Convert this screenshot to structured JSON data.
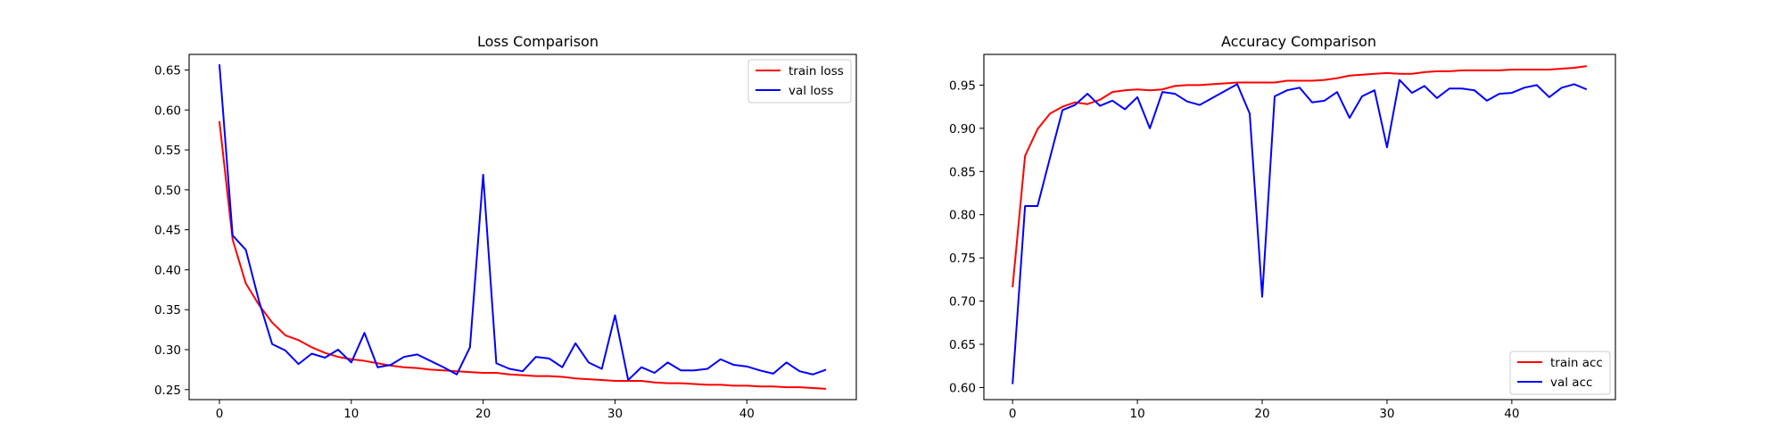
{
  "chart_data": [
    {
      "type": "line",
      "title": "Loss Comparison",
      "xlabel": "",
      "ylabel": "",
      "xlim": [
        -2.3,
        48.3
      ],
      "ylim": [
        0.2375,
        0.6695
      ],
      "xticks": [
        0,
        10,
        20,
        30,
        40
      ],
      "yticks": [
        0.25,
        0.3,
        0.35,
        0.4,
        0.45,
        0.5,
        0.55,
        0.6,
        0.65
      ],
      "tick_labels_x": [
        "0",
        "10",
        "20",
        "30",
        "40"
      ],
      "tick_labels_y": [
        "0.25",
        "0.30",
        "0.35",
        "0.40",
        "0.45",
        "0.50",
        "0.55",
        "0.60",
        "0.65"
      ],
      "legend": "top-right",
      "grid": false,
      "series": [
        {
          "name": "train loss",
          "color": "#ff0000",
          "values": [
            0.586,
            0.438,
            0.383,
            0.356,
            0.334,
            0.318,
            0.312,
            0.303,
            0.296,
            0.291,
            0.288,
            0.286,
            0.283,
            0.28,
            0.278,
            0.277,
            0.275,
            0.274,
            0.273,
            0.272,
            0.271,
            0.271,
            0.269,
            0.268,
            0.267,
            0.267,
            0.266,
            0.264,
            0.263,
            0.262,
            0.261,
            0.261,
            0.261,
            0.259,
            0.258,
            0.258,
            0.257,
            0.256,
            0.256,
            0.255,
            0.255,
            0.254,
            0.254,
            0.253,
            0.253,
            0.252,
            0.251
          ]
        },
        {
          "name": "val loss",
          "color": "#0000ff",
          "values": [
            0.657,
            0.443,
            0.425,
            0.361,
            0.307,
            0.299,
            0.282,
            0.295,
            0.29,
            0.3,
            0.284,
            0.321,
            0.278,
            0.281,
            0.291,
            0.294,
            0.286,
            0.278,
            0.269,
            0.303,
            0.519,
            0.283,
            0.276,
            0.273,
            0.291,
            0.289,
            0.278,
            0.308,
            0.284,
            0.276,
            0.343,
            0.262,
            0.278,
            0.271,
            0.284,
            0.274,
            0.274,
            0.276,
            0.288,
            0.281,
            0.279,
            0.274,
            0.27,
            0.284,
            0.273,
            0.269,
            0.275
          ]
        }
      ]
    },
    {
      "type": "line",
      "title": "Accuracy Comparison",
      "xlabel": "",
      "ylabel": "",
      "xlim": [
        -2.3,
        48.3
      ],
      "ylim": [
        0.586,
        0.9855
      ],
      "xticks": [
        0,
        10,
        20,
        30,
        40
      ],
      "yticks": [
        0.6,
        0.65,
        0.7,
        0.75,
        0.8,
        0.85,
        0.9,
        0.95
      ],
      "tick_labels_x": [
        "0",
        "10",
        "20",
        "30",
        "40"
      ],
      "tick_labels_y": [
        "0.60",
        "0.65",
        "0.70",
        "0.75",
        "0.80",
        "0.85",
        "0.90",
        "0.95"
      ],
      "legend": "bottom-right",
      "grid": false,
      "series": [
        {
          "name": "train acc",
          "color": "#ff0000",
          "values": [
            0.716,
            0.868,
            0.899,
            0.917,
            0.925,
            0.93,
            0.928,
            0.933,
            0.942,
            0.944,
            0.945,
            0.944,
            0.945,
            0.949,
            0.95,
            0.95,
            0.951,
            0.952,
            0.953,
            0.953,
            0.953,
            0.953,
            0.955,
            0.955,
            0.955,
            0.956,
            0.958,
            0.961,
            0.962,
            0.963,
            0.964,
            0.963,
            0.963,
            0.965,
            0.966,
            0.966,
            0.967,
            0.967,
            0.967,
            0.967,
            0.968,
            0.968,
            0.968,
            0.968,
            0.969,
            0.97,
            0.972
          ]
        },
        {
          "name": "val acc",
          "color": "#0000ff",
          "values": [
            0.604,
            0.81,
            0.81,
            0.866,
            0.921,
            0.927,
            0.94,
            0.926,
            0.932,
            0.922,
            0.936,
            0.9,
            0.942,
            0.94,
            0.931,
            0.927,
            0.935,
            0.943,
            0.951,
            0.917,
            0.705,
            0.937,
            0.944,
            0.947,
            0.93,
            0.932,
            0.942,
            0.912,
            0.937,
            0.944,
            0.878,
            0.956,
            0.941,
            0.949,
            0.935,
            0.946,
            0.946,
            0.944,
            0.932,
            0.94,
            0.941,
            0.947,
            0.95,
            0.936,
            0.947,
            0.951,
            0.945
          ]
        }
      ]
    }
  ]
}
